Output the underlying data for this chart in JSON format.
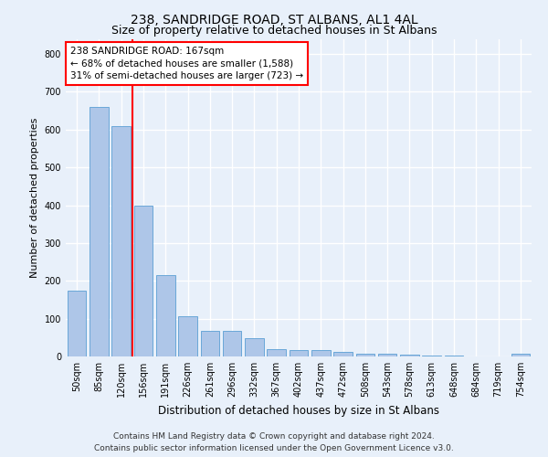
{
  "title1": "238, SANDRIDGE ROAD, ST ALBANS, AL1 4AL",
  "title2": "Size of property relative to detached houses in St Albans",
  "xlabel": "Distribution of detached houses by size in St Albans",
  "ylabel": "Number of detached properties",
  "footer1": "Contains HM Land Registry data © Crown copyright and database right 2024.",
  "footer2": "Contains public sector information licensed under the Open Government Licence v3.0.",
  "categories": [
    "50sqm",
    "85sqm",
    "120sqm",
    "156sqm",
    "191sqm",
    "226sqm",
    "261sqm",
    "296sqm",
    "332sqm",
    "367sqm",
    "402sqm",
    "437sqm",
    "472sqm",
    "508sqm",
    "543sqm",
    "578sqm",
    "613sqm",
    "648sqm",
    "684sqm",
    "719sqm",
    "754sqm"
  ],
  "values": [
    175,
    660,
    610,
    400,
    215,
    107,
    67,
    67,
    48,
    20,
    18,
    18,
    13,
    8,
    8,
    5,
    3,
    3,
    0,
    0,
    7
  ],
  "bar_color": "#aec6e8",
  "bar_edge_color": "#5a9fd4",
  "vline_color": "red",
  "vline_x": 2.5,
  "annotation_line1": "238 SANDRIDGE ROAD: 167sqm",
  "annotation_line2": "← 68% of detached houses are smaller (1,588)",
  "annotation_line3": "31% of semi-detached houses are larger (723) →",
  "annotation_box_color": "white",
  "annotation_box_edge": "red",
  "ylim": [
    0,
    840
  ],
  "yticks": [
    0,
    100,
    200,
    300,
    400,
    500,
    600,
    700,
    800
  ],
  "background_color": "#e8f0fa",
  "plot_background": "#e8f0fa",
  "grid_color": "white",
  "title1_fontsize": 10,
  "title2_fontsize": 9,
  "xlabel_fontsize": 8.5,
  "ylabel_fontsize": 8,
  "tick_fontsize": 7,
  "footer_fontsize": 6.5,
  "annotation_fontsize": 7.5
}
